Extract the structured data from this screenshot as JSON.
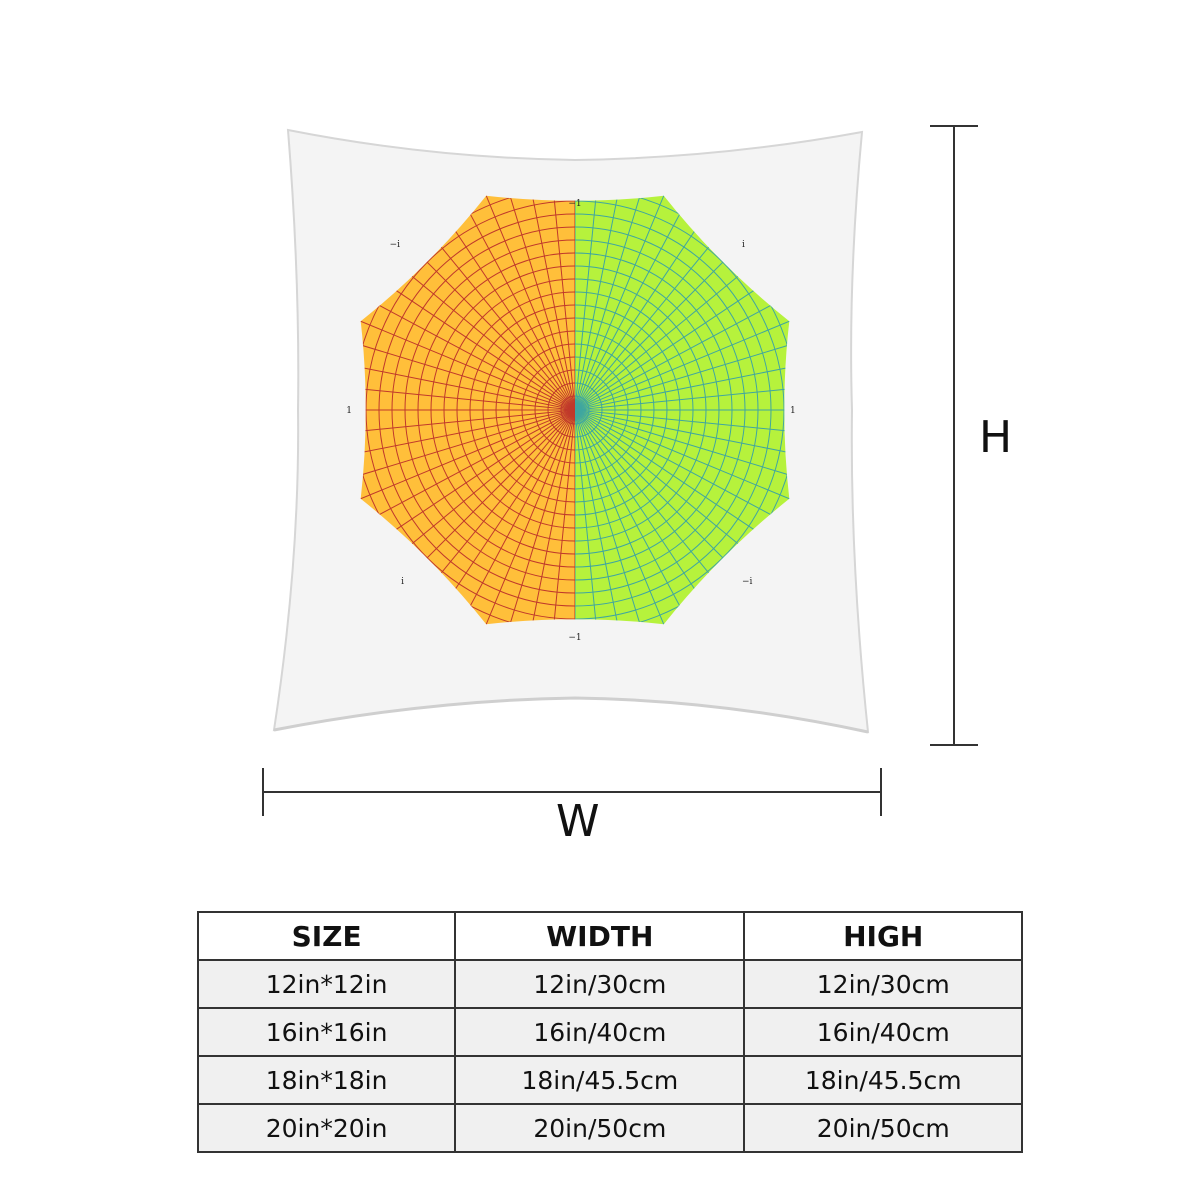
{
  "dimensions": {
    "height_label": "H",
    "width_label": "W"
  },
  "pillow": {
    "fabric_color": "#f4f4f4",
    "left_half_color": "#ffbf3a",
    "left_grid_color": "#c0392b",
    "right_half_color": "#b6f23c",
    "right_grid_color": "#3fa6a0",
    "axis_labels": {
      "top": "−1",
      "bottom": "−1",
      "left": "1",
      "right": "1",
      "top_left": "−i",
      "top_right": "i",
      "bottom_left": "i",
      "bottom_right": "−i"
    }
  },
  "size_table": {
    "headers": [
      "SIZE",
      "WIDTH",
      "HIGH"
    ],
    "rows": [
      [
        "12in*12in",
        "12in/30cm",
        "12in/30cm"
      ],
      [
        "16in*16in",
        "16in/40cm",
        "16in/40cm"
      ],
      [
        "18in*18in",
        "18in/45.5cm",
        "18in/45.5cm"
      ],
      [
        "20in*20in",
        "20in/50cm",
        "20in/50cm"
      ]
    ]
  }
}
